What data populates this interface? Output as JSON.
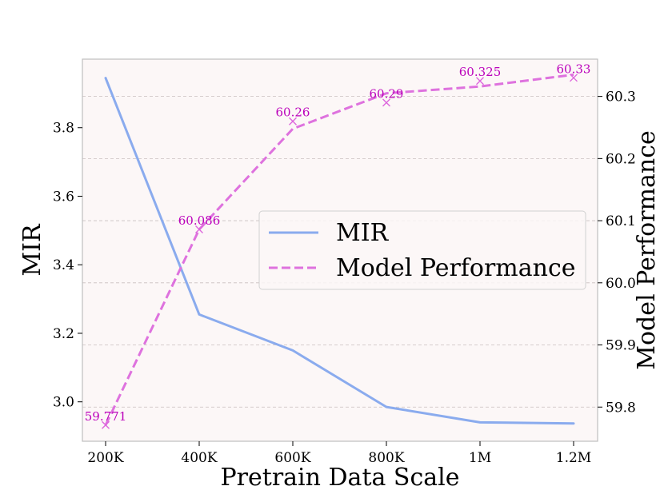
{
  "chart_data": {
    "type": "line",
    "title": "",
    "xlabel": "Pretrain Data Scale",
    "ylabel_left": "MIR",
    "ylabel_right": "Model Performance",
    "categories": [
      "200K",
      "400K",
      "600K",
      "800K",
      "1M",
      "1.2M"
    ],
    "left_axis": {
      "ylim": [
        2.885,
        4.0
      ],
      "ticks": [
        3.0,
        3.2,
        3.4,
        3.6,
        3.8
      ],
      "tick_labels": [
        "3.0",
        "3.2",
        "3.4",
        "3.6",
        "3.8"
      ]
    },
    "right_axis": {
      "ylim": [
        59.745,
        60.36
      ],
      "ticks": [
        59.8,
        59.9,
        60.0,
        60.1,
        60.2,
        60.3
      ],
      "tick_labels": [
        "59.8",
        "59.9",
        "60.0",
        "60.1",
        "60.2",
        "60.3"
      ]
    },
    "series": [
      {
        "name": "MIR",
        "axis": "left",
        "style": "solid",
        "color": "#8aabee",
        "values": [
          3.945,
          3.255,
          3.15,
          2.985,
          2.94,
          2.937
        ]
      },
      {
        "name": "Model Performance",
        "axis": "right",
        "style": "dashed",
        "color": "#de72de",
        "values": [
          59.771,
          60.086,
          60.248,
          60.305,
          60.316,
          60.335
        ],
        "markers": [
          59.771,
          60.086,
          60.26,
          60.29,
          60.325,
          60.33
        ],
        "marker_color": "#dd66dd",
        "annotations": [
          "59.771",
          "60.086",
          "60.26",
          "60.29",
          "60.325",
          "60.33"
        ],
        "annotation_color": "#bb00bb"
      }
    ],
    "legend": [
      "MIR",
      "Model Performance"
    ],
    "legend_location": "center-right",
    "grid": "horizontal-dashed",
    "background": "#fcf7f7"
  }
}
